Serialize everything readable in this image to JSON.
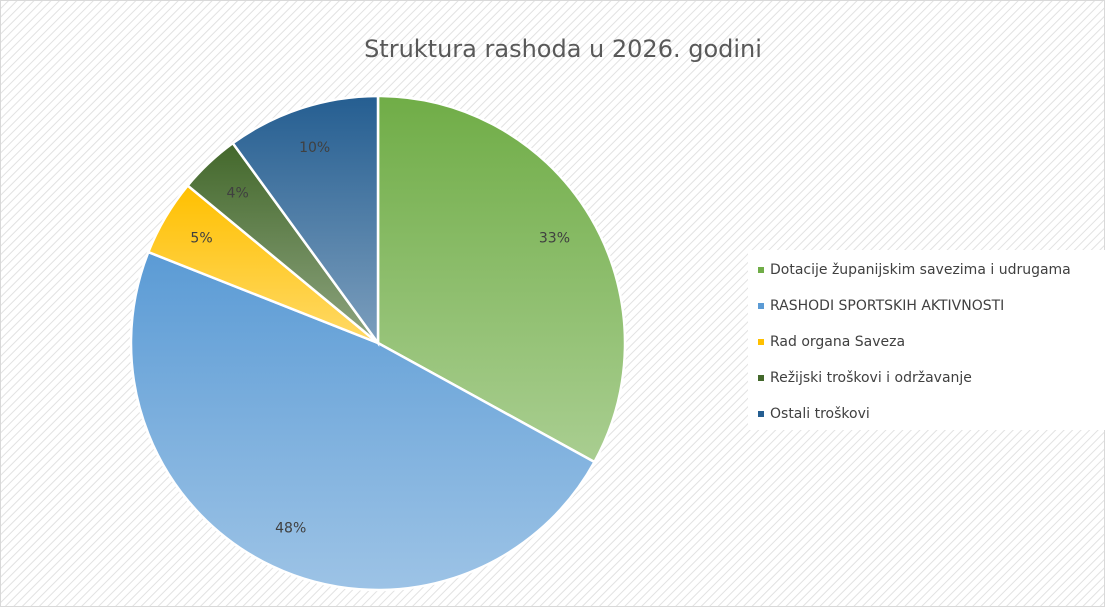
{
  "chart_data": {
    "type": "pie",
    "title": "Struktura rashoda u 2026. godini",
    "categories": [
      "Dotacije županijskim savezima i udrugama",
      "RASHODI SPORTSKIH AKTIVNOSTI",
      "Rad organa Saveza",
      "Režijski troškovi i održavanje",
      "Ostali troškovi"
    ],
    "values": [
      33,
      48,
      5,
      4,
      10
    ],
    "value_labels": [
      "33%",
      "48%",
      "5%",
      "4%",
      "10%"
    ],
    "colors": [
      "#70ad47",
      "#5b9bd5",
      "#ffc000",
      "#43682b",
      "#255e91"
    ],
    "legend": "right"
  }
}
